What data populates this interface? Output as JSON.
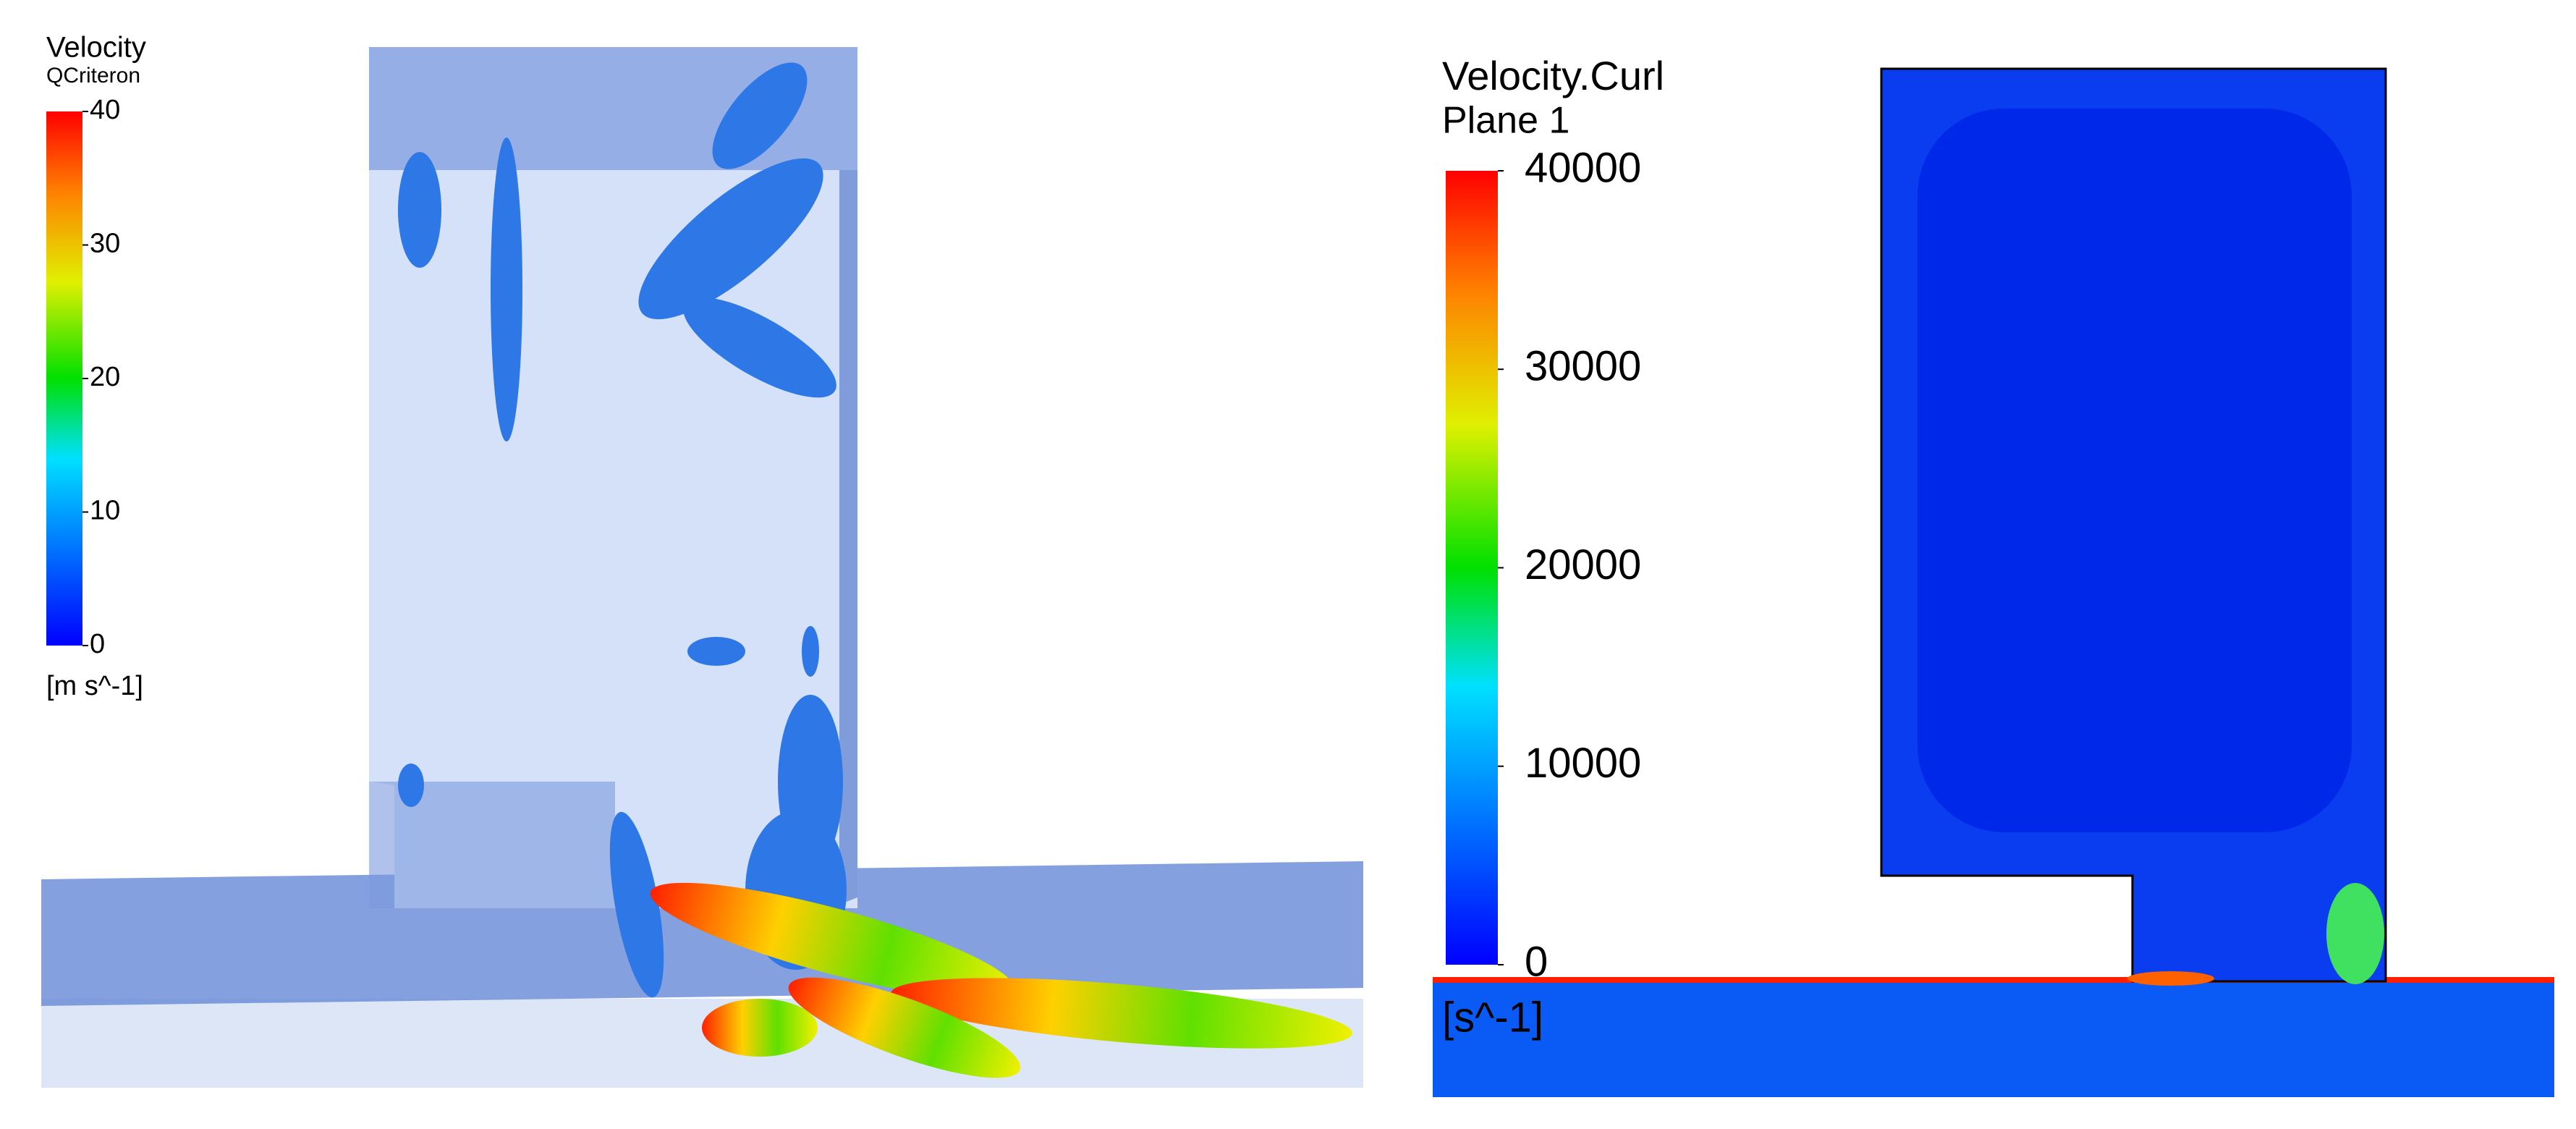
{
  "panels": [
    {
      "legend": {
        "title": "Velocity",
        "subtitle": "QCriteron",
        "range": [
          0,
          40
        ],
        "ticks": [
          0,
          10,
          20,
          30,
          40
        ],
        "unit": "[m s^-1]"
      }
    },
    {
      "legend": {
        "title": "Velocity.Curl",
        "subtitle": "Plane 1",
        "range": [
          0,
          40000
        ],
        "ticks": [
          0,
          10000,
          20000,
          30000,
          40000
        ],
        "unit": "[s^-1]"
      }
    }
  ]
}
